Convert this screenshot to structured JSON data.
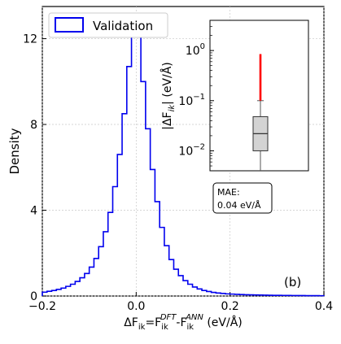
{
  "chart_data": [
    {
      "type": "histogram",
      "series": [
        {
          "name": "Validation",
          "color": "#0000ee",
          "bin_edges": [
            -0.21,
            -0.2,
            -0.19,
            -0.18,
            -0.17,
            -0.16,
            -0.15,
            -0.14,
            -0.13,
            -0.12,
            -0.11,
            -0.1,
            -0.09,
            -0.08,
            -0.07,
            -0.06,
            -0.05,
            -0.04,
            -0.03,
            -0.02,
            -0.01,
            0.0,
            0.01,
            0.02,
            0.03,
            0.04,
            0.05,
            0.06,
            0.07,
            0.08,
            0.09,
            0.1,
            0.11,
            0.12,
            0.13,
            0.14,
            0.15,
            0.16,
            0.17,
            0.18,
            0.19,
            0.2,
            0.21,
            0.22,
            0.23,
            0.24,
            0.25,
            0.26,
            0.27,
            0.28,
            0.29,
            0.3,
            0.31,
            0.32,
            0.33,
            0.34,
            0.35,
            0.36,
            0.37,
            0.38,
            0.39,
            0.4
          ],
          "density": [
            0.15,
            0.18,
            0.22,
            0.26,
            0.31,
            0.37,
            0.45,
            0.55,
            0.68,
            0.85,
            1.05,
            1.35,
            1.75,
            2.3,
            3.0,
            3.9,
            5.1,
            6.6,
            8.5,
            10.7,
            12.8,
            12.2,
            10.0,
            7.8,
            5.9,
            4.4,
            3.2,
            2.35,
            1.7,
            1.25,
            0.95,
            0.72,
            0.55,
            0.42,
            0.33,
            0.26,
            0.21,
            0.17,
            0.14,
            0.12,
            0.1,
            0.09,
            0.08,
            0.07,
            0.06,
            0.055,
            0.05,
            0.045,
            0.04,
            0.035,
            0.032,
            0.03,
            0.028,
            0.026,
            0.024,
            0.022,
            0.02,
            0.018,
            0.016,
            0.015,
            0.014
          ]
        }
      ],
      "xlabel_main": "ΔF",
      "xlabel_sub1": "ik",
      "xlabel_eq": "=F",
      "xlabel_sub2": "ik",
      "xlabel_sup2": "DFT",
      "xlabel_dash": "-F",
      "xlabel_sub3": "ik",
      "xlabel_sup3": "ANN",
      "xlabel_unit": " (eV/Å)",
      "ylabel": "Density",
      "xlim": [
        -0.2,
        0.4
      ],
      "ylim": [
        0,
        13.5
      ],
      "xticks": [
        "−0.2",
        "0.0",
        "0.2",
        "0.4"
      ],
      "xtick_values": [
        -0.2,
        0.0,
        0.2,
        0.4
      ],
      "yticks": [
        "0",
        "4",
        "8",
        "12"
      ],
      "ytick_values": [
        0,
        4,
        8,
        12
      ],
      "grid": true,
      "legend": "top-left",
      "panel_label": "(b)",
      "annotation": {
        "line1": "MAE:",
        "line2": "0.04 eV/Å"
      }
    },
    {
      "type": "boxplot",
      "scale": "log",
      "ylabel_pre": "|ΔF",
      "ylabel_sub": "ik",
      "ylabel_post": "| (eV/Å)",
      "ylim": [
        0.004,
        4.0
      ],
      "yticks": [
        {
          "base": "10",
          "exp": "0",
          "value": 1.0
        },
        {
          "base": "10",
          "exp": "−1",
          "value": 0.1
        },
        {
          "base": "10",
          "exp": "−2",
          "value": 0.01
        }
      ],
      "box": {
        "whisker_low": 0.004,
        "q1": 0.01,
        "median": 0.022,
        "q3": 0.048,
        "whisker_high": 0.1,
        "fill": "#d3d3d3"
      },
      "outliers": {
        "range": [
          0.1,
          0.85
        ],
        "color": "#ff0000"
      }
    }
  ]
}
